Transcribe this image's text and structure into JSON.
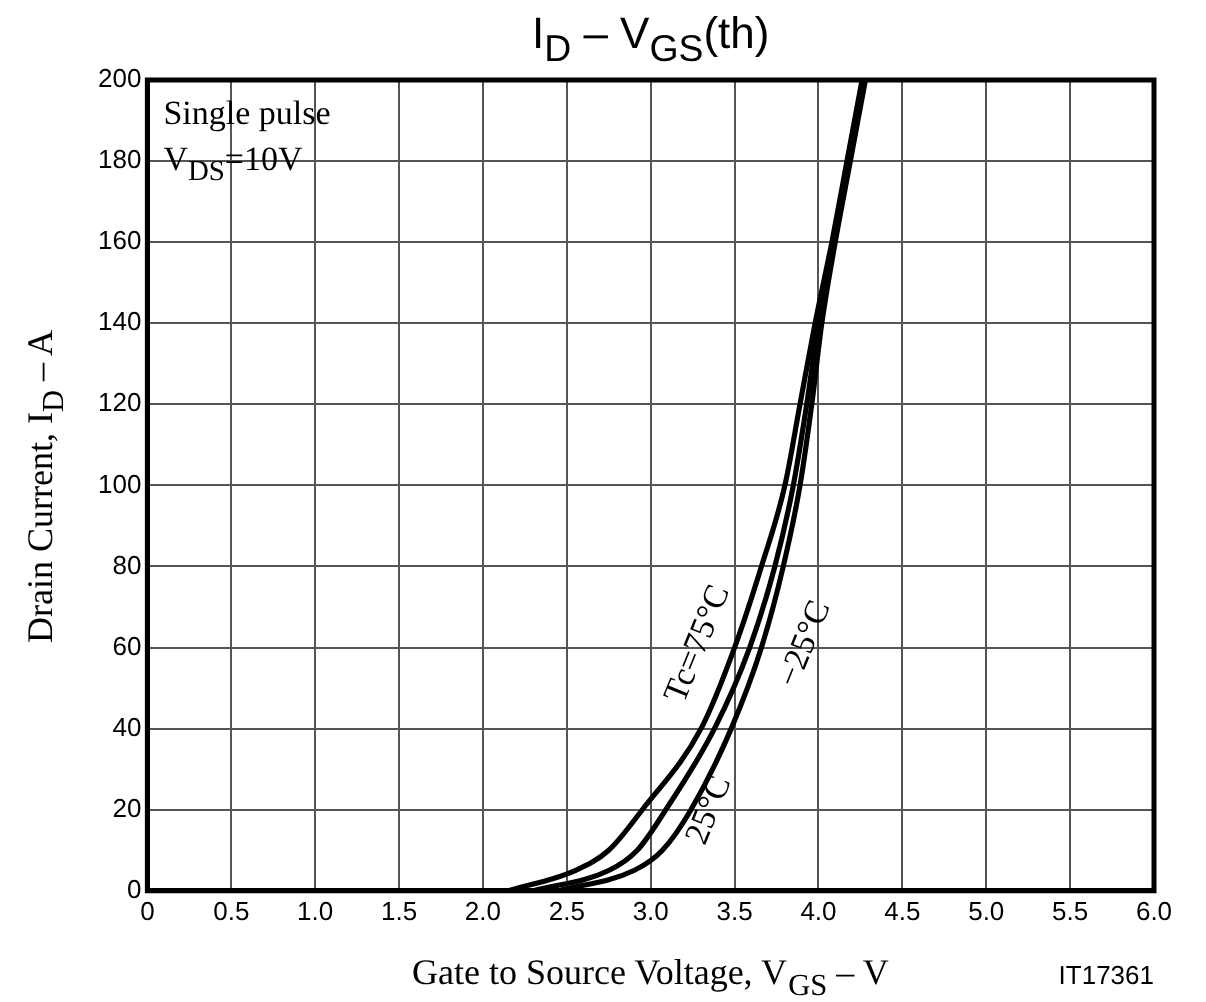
{
  "chart_data": {
    "type": "line",
    "title": "I$_{D}$ – V$_{GS}$(th)",
    "xlabel": "Gate to Source Voltage, V$_{GS}$ – V",
    "ylabel": "Drain Current, I$_{D}$ – A",
    "annotations": [
      "Single pulse",
      "V$_{DS}$=10V",
      "IT17361"
    ],
    "xlim": [
      0,
      6
    ],
    "xticks": [
      0,
      0.5,
      {
        "value": 1,
        "label": "1.0"
      },
      1.5,
      {
        "value": 2,
        "label": "2.0"
      },
      2.5,
      {
        "value": 3,
        "label": "3.0"
      },
      3.5,
      {
        "value": 4,
        "label": "4.0"
      },
      4.5,
      {
        "value": 5,
        "label": "5.0"
      },
      5.5,
      {
        "value": 6,
        "label": "6.0"
      }
    ],
    "ylim": [
      0,
      200
    ],
    "yticks": [
      0,
      20,
      40,
      60,
      80,
      100,
      120,
      140,
      160,
      180,
      200
    ],
    "grid": true,
    "legend": false,
    "marker": "none",
    "line_style": "solid",
    "series": [
      {
        "name": "Tc=75°C",
        "color": "#000000",
        "x": [
          2.15,
          2.55,
          2.75,
          2.95,
          3.3,
          3.5,
          3.66,
          3.8,
          3.89,
          3.98,
          4.08,
          4.17,
          4.26
        ],
        "values": [
          0,
          5,
          10,
          20,
          40,
          60,
          80,
          100,
          120,
          140,
          160,
          180,
          200
        ]
      },
      {
        "name": "25°C",
        "color": "#000000",
        "x": [
          2.3,
          2.75,
          2.92,
          3.09,
          3.38,
          3.59,
          3.74,
          3.85,
          3.93,
          4.0,
          4.09,
          4.18,
          4.27
        ],
        "values": [
          0,
          5,
          10,
          20,
          40,
          60,
          80,
          100,
          120,
          140,
          160,
          180,
          200
        ]
      },
      {
        "name": "−25°C",
        "color": "#000000",
        "x": [
          2.45,
          2.9,
          3.07,
          3.24,
          3.48,
          3.66,
          3.79,
          3.89,
          3.96,
          4.02,
          4.1,
          4.19,
          4.28
        ],
        "values": [
          0,
          5,
          10,
          20,
          40,
          60,
          80,
          100,
          120,
          140,
          160,
          180,
          200
        ]
      }
    ]
  }
}
